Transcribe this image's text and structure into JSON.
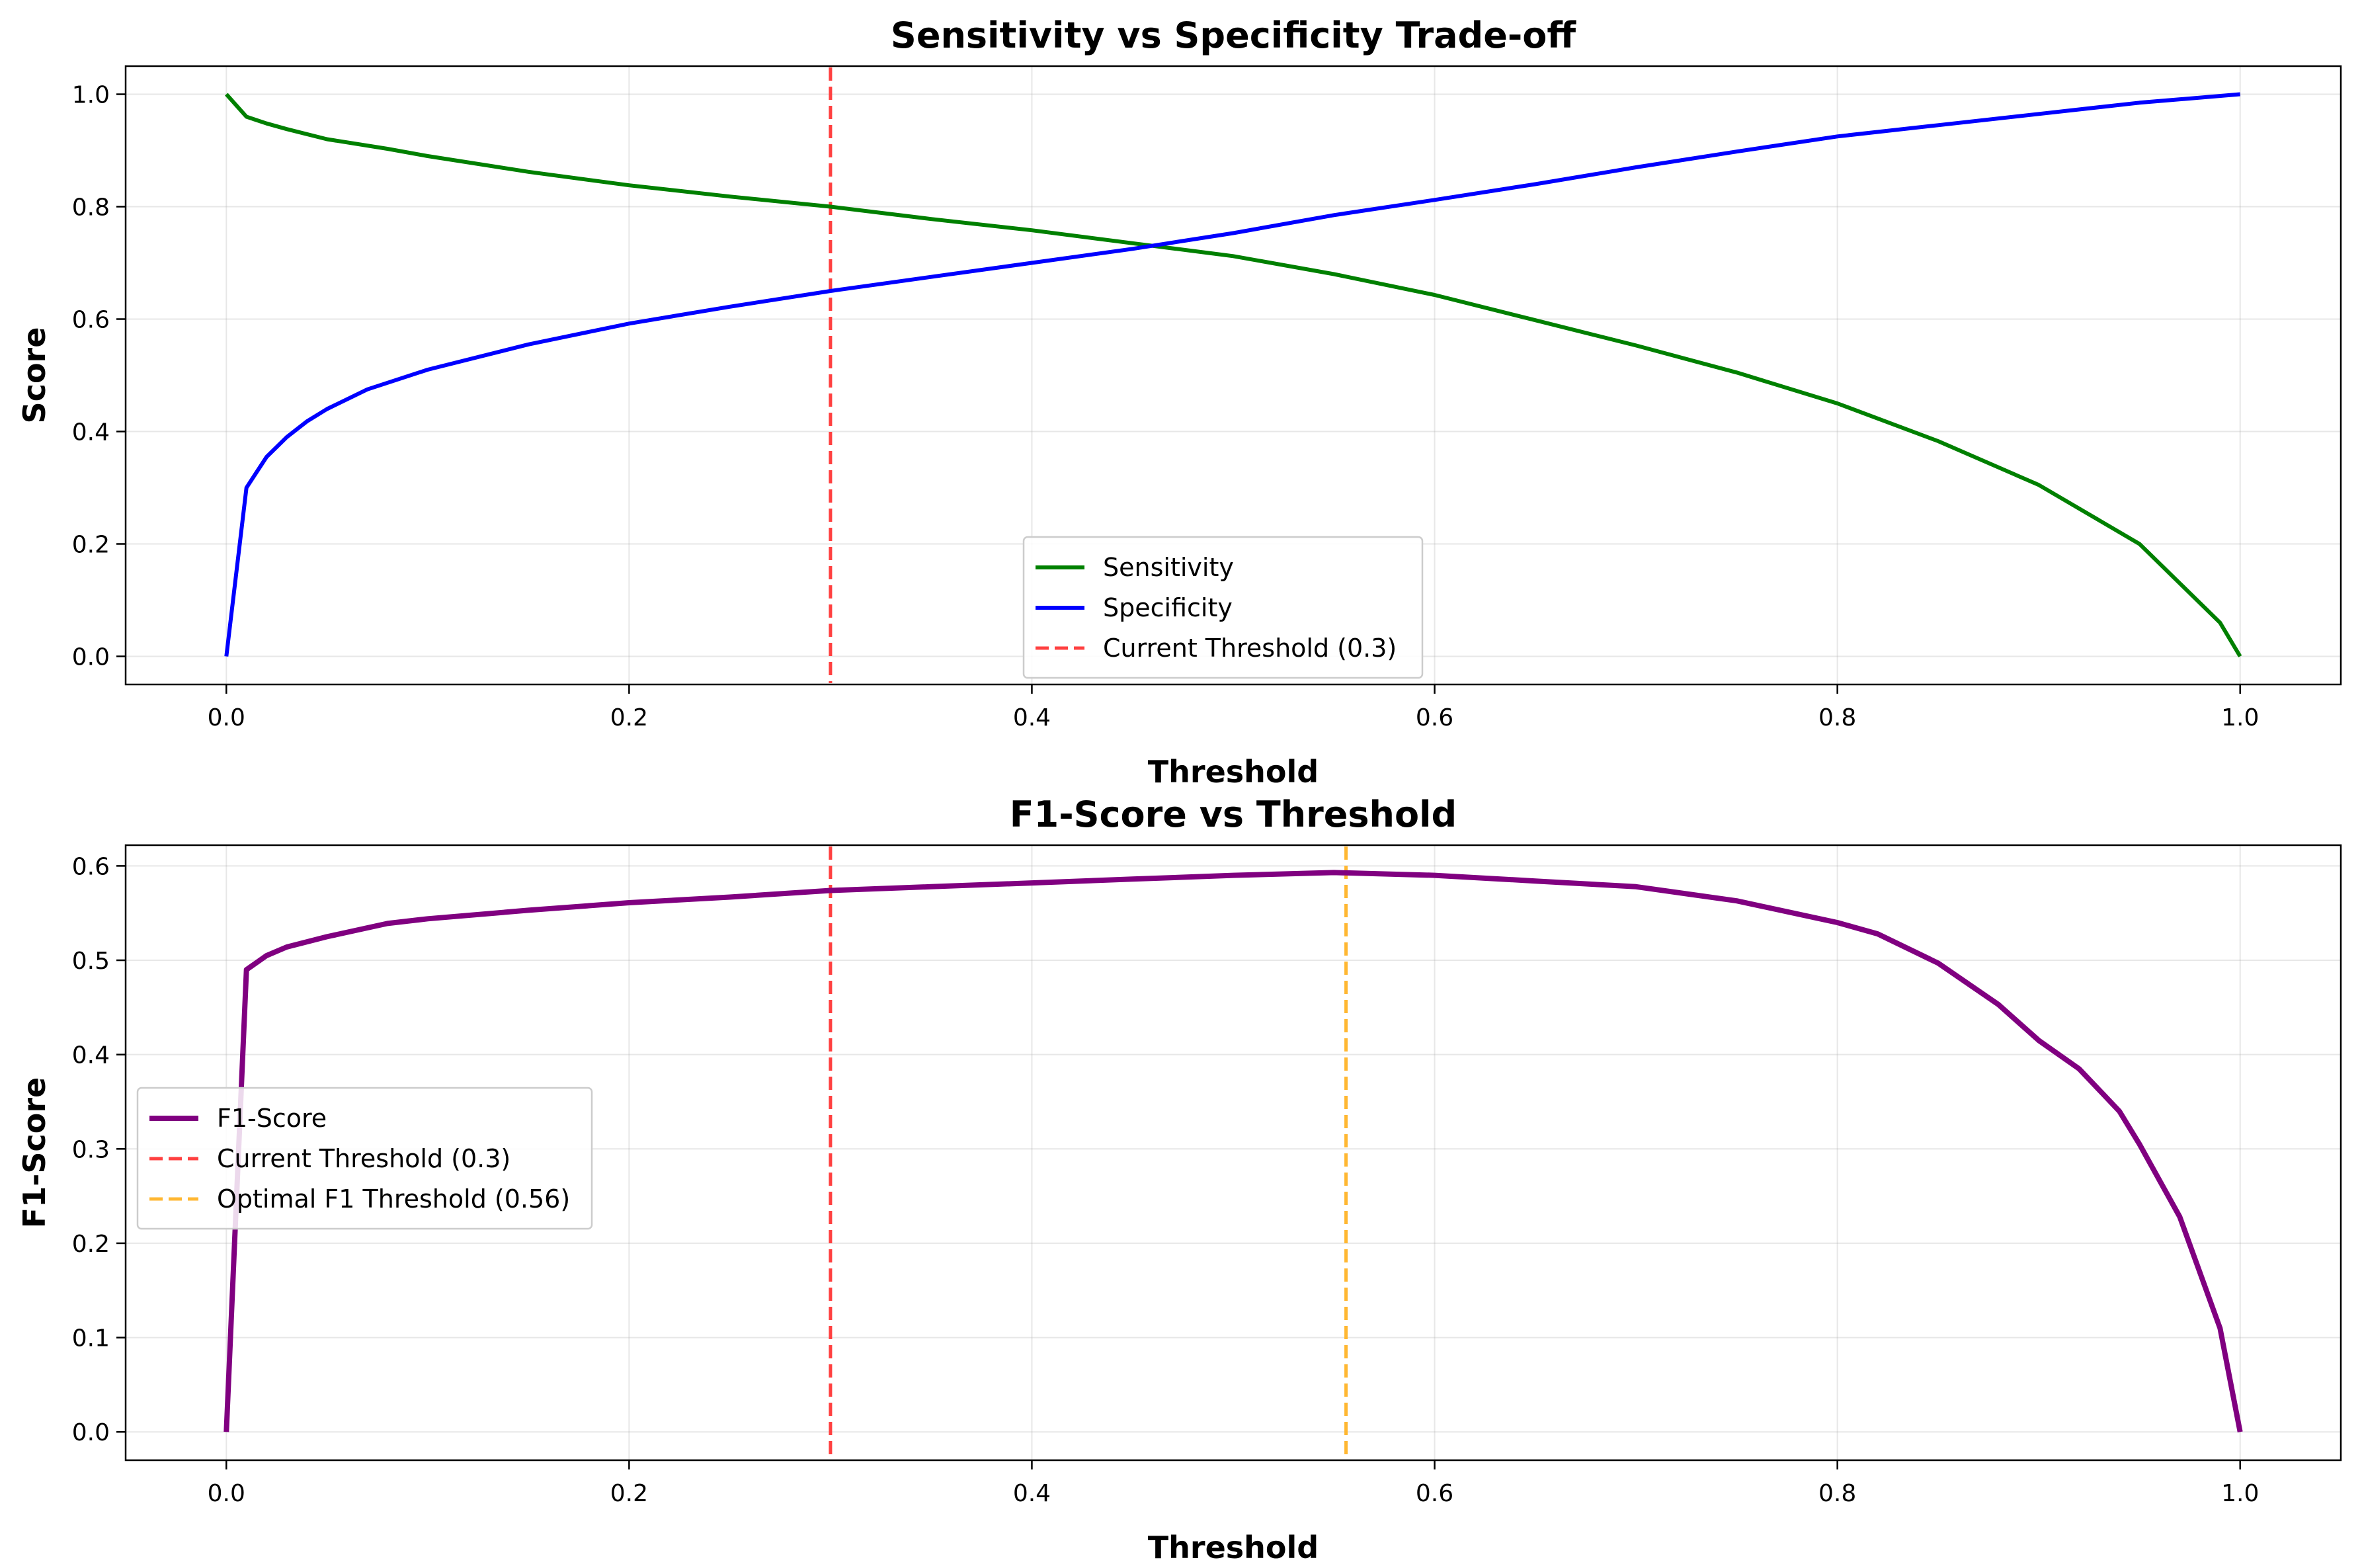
{
  "chart_data": [
    {
      "type": "line",
      "title": "Sensitivity vs Specificity Trade-off",
      "xlabel": "Threshold",
      "ylabel": "Score",
      "xlim": [
        -0.05,
        1.05
      ],
      "ylim": [
        -0.05,
        1.05
      ],
      "xticks": [
        0.0,
        0.2,
        0.4,
        0.6,
        0.8,
        1.0
      ],
      "yticks": [
        0.0,
        0.2,
        0.4,
        0.6,
        0.8,
        1.0
      ],
      "grid": true,
      "legend_position": "lower-center",
      "series": [
        {
          "name": "Sensitivity",
          "color": "#008000",
          "x": [
            0.0,
            0.01,
            0.02,
            0.03,
            0.05,
            0.08,
            0.1,
            0.15,
            0.2,
            0.25,
            0.3,
            0.35,
            0.4,
            0.45,
            0.5,
            0.55,
            0.6,
            0.65,
            0.7,
            0.75,
            0.8,
            0.85,
            0.9,
            0.95,
            0.97,
            0.99,
            1.0
          ],
          "values": [
            1.0,
            0.96,
            0.948,
            0.938,
            0.92,
            0.903,
            0.89,
            0.862,
            0.838,
            0.818,
            0.8,
            0.778,
            0.758,
            0.735,
            0.712,
            0.68,
            0.643,
            0.598,
            0.553,
            0.505,
            0.45,
            0.383,
            0.305,
            0.2,
            0.13,
            0.06,
            0.0
          ]
        },
        {
          "name": "Specificity",
          "color": "#0000ff",
          "x": [
            0.0,
            0.01,
            0.02,
            0.03,
            0.04,
            0.05,
            0.07,
            0.1,
            0.15,
            0.2,
            0.25,
            0.3,
            0.35,
            0.4,
            0.45,
            0.5,
            0.55,
            0.6,
            0.65,
            0.7,
            0.75,
            0.8,
            0.85,
            0.9,
            0.95,
            1.0
          ],
          "values": [
            0.0,
            0.3,
            0.355,
            0.39,
            0.418,
            0.44,
            0.475,
            0.51,
            0.555,
            0.592,
            0.622,
            0.65,
            0.675,
            0.7,
            0.725,
            0.753,
            0.785,
            0.812,
            0.84,
            0.87,
            0.898,
            0.925,
            0.945,
            0.965,
            0.985,
            1.0
          ]
        },
        {
          "name": "Current Threshold (0.3)",
          "color": "#ff4040",
          "style": "dashed",
          "vertical_line_x": 0.3
        }
      ]
    },
    {
      "type": "line",
      "title": "F1-Score vs Threshold",
      "xlabel": "Threshold",
      "ylabel": "F1-Score",
      "xlim": [
        -0.05,
        1.05
      ],
      "ylim": [
        -0.03,
        0.622
      ],
      "xticks": [
        0.0,
        0.2,
        0.4,
        0.6,
        0.8,
        1.0
      ],
      "yticks": [
        0.0,
        0.1,
        0.2,
        0.3,
        0.4,
        0.5,
        0.6
      ],
      "grid": true,
      "legend_position": "center-left",
      "series": [
        {
          "name": "F1-Score",
          "color": "#800080",
          "x": [
            0.0,
            0.01,
            0.02,
            0.03,
            0.05,
            0.08,
            0.1,
            0.15,
            0.2,
            0.25,
            0.3,
            0.35,
            0.4,
            0.45,
            0.5,
            0.55,
            0.6,
            0.65,
            0.7,
            0.75,
            0.8,
            0.82,
            0.85,
            0.88,
            0.9,
            0.92,
            0.94,
            0.95,
            0.97,
            0.99,
            1.0
          ],
          "values": [
            0.0,
            0.49,
            0.505,
            0.514,
            0.525,
            0.539,
            0.544,
            0.553,
            0.561,
            0.567,
            0.574,
            0.578,
            0.582,
            0.586,
            0.59,
            0.593,
            0.59,
            0.584,
            0.578,
            0.563,
            0.54,
            0.528,
            0.497,
            0.453,
            0.415,
            0.385,
            0.34,
            0.305,
            0.228,
            0.11,
            0.0
          ]
        },
        {
          "name": "Current Threshold (0.3)",
          "color": "#ff4040",
          "style": "dashed",
          "vertical_line_x": 0.3
        },
        {
          "name": "Optimal F1 Threshold (0.56)",
          "color": "#ffb732",
          "style": "dashed",
          "vertical_line_x": 0.556
        }
      ]
    }
  ]
}
